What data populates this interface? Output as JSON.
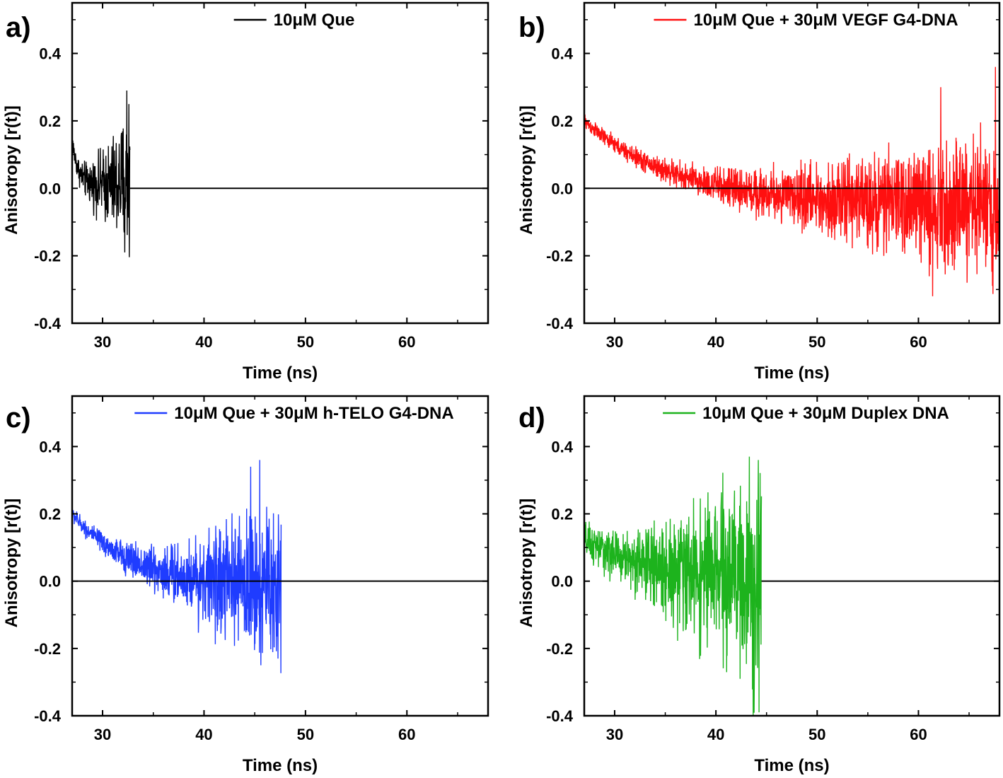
{
  "chart_data": [
    {
      "panel": "a)",
      "type": "line",
      "legend": "10μM Que",
      "legend_position": "top-center",
      "color": "#000000",
      "xlabel": "Time (ns)",
      "ylabel": "Anisotropy [r(t)]",
      "xlim": [
        27,
        68
      ],
      "ylim": [
        -0.4,
        0.55
      ],
      "xticks": [
        "30",
        "40",
        "50",
        "60"
      ],
      "yticks": [
        "-0.4",
        "-0.2",
        "0.0",
        "0.2",
        "0.4"
      ],
      "grid": false,
      "decay": {
        "t_start": 27,
        "t_end": 32.7,
        "r0": 0.14,
        "r_inf": 0.01,
        "tau": 0.6
      },
      "noise": {
        "base": 0.03,
        "growth": 0.17,
        "spikes": [
          [
            32.4,
            0.29
          ],
          [
            32.2,
            -0.19
          ],
          [
            32.6,
            0.25
          ]
        ]
      },
      "baseline": {
        "t_start": 32.7,
        "t_end": 68,
        "value": 0.0
      }
    },
    {
      "panel": "b)",
      "type": "line",
      "legend": "10μM Que + 30μM VEGF G4-DNA",
      "legend_position": "top-center",
      "color": "#ff1010",
      "xlabel": "Time (ns)",
      "ylabel": "Anisotropy [r(t)]",
      "xlim": [
        27,
        68
      ],
      "ylim": [
        -0.4,
        0.55
      ],
      "xticks": [
        "30",
        "40",
        "50",
        "60"
      ],
      "yticks": [
        "-0.4",
        "-0.2",
        "0.0",
        "0.2",
        "0.4"
      ],
      "grid": false,
      "decay": {
        "t_start": 27,
        "t_end": 68,
        "r0": 0.2,
        "r_inf": -0.05,
        "tau": 9.0
      },
      "noise": {
        "base": 0.02,
        "growth": 0.17,
        "spikes": [
          [
            61.4,
            -0.32
          ],
          [
            62.2,
            0.3
          ],
          [
            67.6,
            0.36
          ],
          [
            64.8,
            -0.28
          ]
        ]
      },
      "baseline": {
        "t_start": 27,
        "t_end": 68,
        "value": 0.0
      }
    },
    {
      "panel": "c)",
      "type": "line",
      "legend": "10μM Que + 30μM h-TELO G4-DNA",
      "legend_position": "top-center",
      "color": "#1f3cff",
      "xlabel": "Time (ns)",
      "ylabel": "Anisotropy [r(t)]",
      "xlim": [
        27,
        68
      ],
      "ylim": [
        -0.4,
        0.55
      ],
      "xticks": [
        "30",
        "40",
        "50",
        "60"
      ],
      "yticks": [
        "-0.4",
        "-0.2",
        "0.0",
        "0.2",
        "0.4"
      ],
      "grid": false,
      "decay": {
        "t_start": 27,
        "t_end": 47.6,
        "r0": 0.2,
        "r_inf": -0.02,
        "tau": 6.0
      },
      "noise": {
        "base": 0.02,
        "growth": 0.2,
        "spikes": [
          [
            45.5,
            0.36
          ],
          [
            45.6,
            -0.25
          ],
          [
            47.3,
            -0.23
          ],
          [
            44.6,
            0.34
          ]
        ]
      },
      "baseline": {
        "t_start": 27,
        "t_end": 68,
        "value": 0.0
      }
    },
    {
      "panel": "d)",
      "type": "line",
      "legend": "10μM Que + 30μM Duplex DNA",
      "legend_position": "top-center",
      "color": "#1db31d",
      "xlabel": "Time (ns)",
      "ylabel": "Anisotropy [r(t)]",
      "xlim": [
        27,
        68
      ],
      "ylim": [
        -0.4,
        0.55
      ],
      "xticks": [
        "30",
        "40",
        "50",
        "60"
      ],
      "yticks": [
        "-0.4",
        "-0.2",
        "0.0",
        "0.2",
        "0.4"
      ],
      "grid": false,
      "decay": {
        "t_start": 27,
        "t_end": 44.5,
        "r0": 0.12,
        "r_inf": 0.0,
        "tau": 7.0
      },
      "noise": {
        "base": 0.05,
        "growth": 0.25,
        "spikes": [
          [
            43.3,
            0.37
          ],
          [
            43.8,
            -0.3
          ],
          [
            44.2,
            0.36
          ],
          [
            42.4,
            -0.29
          ]
        ]
      },
      "baseline": {
        "t_start": 44.5,
        "t_end": 68,
        "value": 0.0
      }
    }
  ]
}
